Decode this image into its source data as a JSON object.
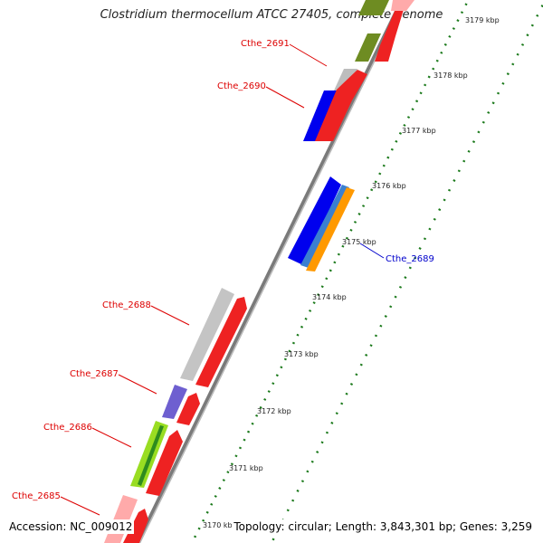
{
  "title": "Clostridium thermocellum ATCC 27405, complete genome",
  "accession": "Accession: NC_009012",
  "summary": "Topology: circular; Length: 3,843,301 bp; Genes: 3,259",
  "colors": {
    "backbone": "#8a8a8a",
    "tick_green": "#1c7a1c",
    "label_red": "#dd0000",
    "label_blue": "#0000cc"
  },
  "scale_ticks": [
    "3170 kbp",
    "3171 kbp",
    "3172 kbp",
    "3173 kbp",
    "3174 kbp",
    "3175 kbp",
    "3176 kbp",
    "3177 kbp",
    "3178 kbp",
    "3179 kbp"
  ],
  "gene_labels": [
    {
      "text": "Cthe_2691",
      "color": "red"
    },
    {
      "text": "Cthe_2690",
      "color": "red"
    },
    {
      "text": "Cthe_2689",
      "color": "blue"
    },
    {
      "text": "Cthe_2688",
      "color": "red"
    },
    {
      "text": "Cthe_2687",
      "color": "red"
    },
    {
      "text": "Cthe_2686",
      "color": "red"
    },
    {
      "text": "Cthe_2685",
      "color": "red"
    }
  ]
}
